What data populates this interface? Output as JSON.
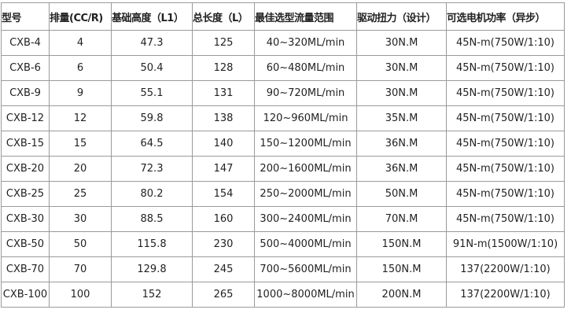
{
  "table": {
    "header": [
      "型号",
      "排量(CC/R)",
      "基础高度（L1）",
      "总长度（L）",
      "最佳选型流量范围",
      "驱动扭力（设计）",
      "可选电机功率（异步）"
    ],
    "rows": [
      [
        "CXB-4",
        "4",
        "47.3",
        "125",
        "40~320ML/min",
        "30N.M",
        "45N-m(750W/1:10)"
      ],
      [
        "CXB-6",
        "6",
        "50.4",
        "128",
        "60~480ML/min",
        "30N.M",
        "45N-m(750W/1:10)"
      ],
      [
        "CXB-9",
        "9",
        "55.1",
        "131",
        "90~720ML/min",
        "30N.M",
        "45N-m(750W/1:10)"
      ],
      [
        "CXB-12",
        "12",
        "59.8",
        "138",
        "120~960ML/min",
        "35N.M",
        "45N-m(750W/1:10)"
      ],
      [
        "CXB-15",
        "15",
        "64.5",
        "140",
        "150~1200ML/min",
        "36N.M",
        "45N-m(750W/1:10)"
      ],
      [
        "CXB-20",
        "20",
        "72.3",
        "147",
        "200~1600ML/min",
        "36N.M",
        "45N-m(750W/1:10)"
      ],
      [
        "CXB-25",
        "25",
        "80.2",
        "154",
        "250~2000ML/min",
        "50N.M",
        "45N-m(750W/1:10)"
      ],
      [
        "CXB-30",
        "30",
        "88.5",
        "160",
        "300~2400ML/min",
        "70N.M",
        "45N-m(750W/1:10)"
      ],
      [
        "CXB-50",
        "50",
        "115.8",
        "230",
        "500~4000ML/min",
        "150N.M",
        "91N-m(1500W/1:10)"
      ],
      [
        "CXB-70",
        "70",
        "129.8",
        "245",
        "700~5600ML/min",
        "150N.M",
        "137(2200W/1:10)"
      ],
      [
        "CXB-100",
        "100",
        "152",
        "265",
        "1000~8000ML/min",
        "200N.M",
        "137(2200W/1:10)"
      ]
    ]
  }
}
